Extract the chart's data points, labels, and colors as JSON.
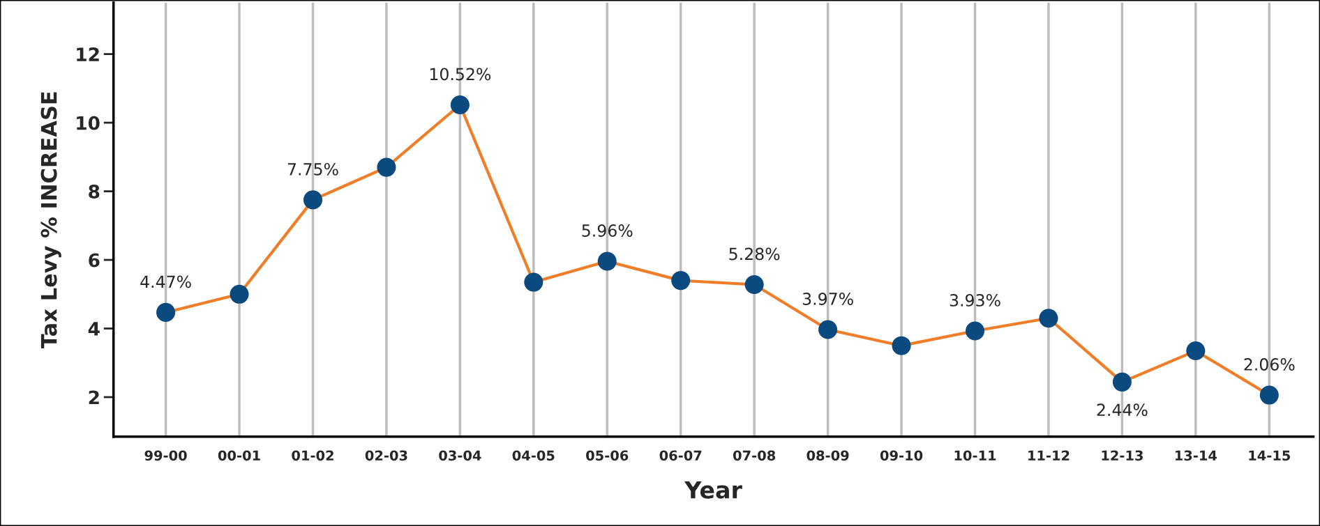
{
  "chart_data": {
    "type": "line",
    "xlabel": "Year",
    "ylabel": "Tax Levy % INCREASE",
    "categories": [
      "99-00",
      "00-01",
      "01-02",
      "02-03",
      "03-04",
      "04-05",
      "05-06",
      "06-07",
      "07-08",
      "08-09",
      "09-10",
      "10-11",
      "11-12",
      "12-13",
      "13-14",
      "14-15"
    ],
    "series": [
      {
        "color": "#f07d28",
        "colors": [
          "#0b4a7e",
          "#0b4a7e",
          "#0b4a7e",
          "#0b4a7e",
          "#0b4a7e",
          "#0b4a7e",
          "#0b4a7e",
          "#0b4a7e",
          "#0b4a7e",
          "#0b4a7e",
          "#0b4a7e",
          "#0b4a7e",
          "#0b4a7e",
          "#0b4a7e",
          "#0b4a7e",
          "#0b4a7e"
        ],
        "values": [
          4.47,
          5.0,
          7.75,
          8.7,
          10.52,
          5.35,
          5.96,
          5.4,
          5.28,
          3.97,
          3.5,
          3.93,
          4.3,
          2.44,
          3.35,
          2.06
        ],
        "value_labels": [
          "4.47%",
          null,
          "7.75%",
          null,
          "10.52%",
          null,
          "5.96%",
          null,
          "5.28%",
          "3.97%",
          null,
          "3.93%",
          null,
          "2.44%",
          null,
          "2.06%"
        ]
      }
    ],
    "ylim": [
      0.85,
      13.5
    ],
    "yticks": [
      2,
      4,
      6,
      8,
      10,
      12
    ],
    "grid": "x",
    "marker": "circle",
    "line_style": "solid"
  }
}
